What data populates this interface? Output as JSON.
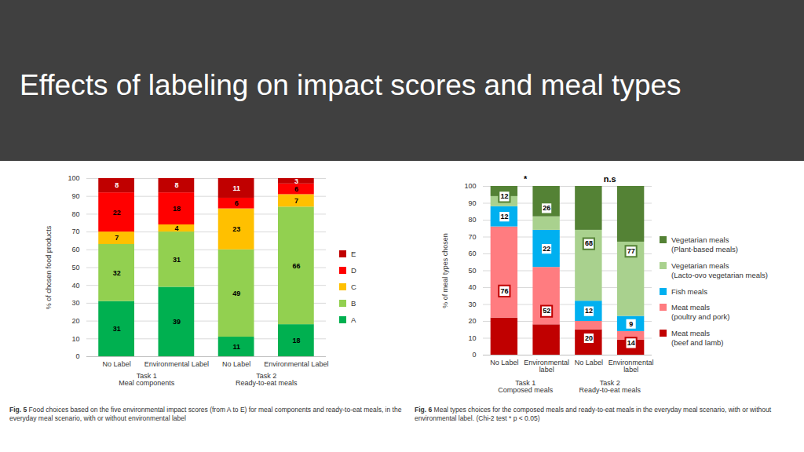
{
  "title": "Effects of labeling on impact scores and meal types",
  "chart_data": [
    {
      "type": "bar",
      "stacked": true,
      "data_labels": true,
      "grid": true,
      "legend": "right",
      "figure": "Fig. 5",
      "caption": "Food choices based on the five environmental impact scores (from A to E) for meal components and ready-to-eat meals, in the everyday meal scenario, with or without environmental label",
      "y_label": "% of chosen food products",
      "ylim": [
        0,
        100
      ],
      "yticks": [
        0,
        10,
        20,
        30,
        40,
        50,
        60,
        70,
        80,
        90,
        100
      ],
      "categories": [
        "No Label",
        "Environmental Label",
        "No Label",
        "Environmental Label"
      ],
      "groups": [
        "Task 1\nMeal components",
        "Task 2\nReady-to-eat meals"
      ],
      "series": [
        {
          "name": "A",
          "color": "#00b050",
          "values": [
            31,
            39,
            11,
            18
          ]
        },
        {
          "name": "B",
          "color": "#92d050",
          "values": [
            32,
            31,
            49,
            66
          ]
        },
        {
          "name": "C",
          "color": "#ffc000",
          "values": [
            7,
            4,
            23,
            7
          ]
        },
        {
          "name": "D",
          "color": "#ff0000",
          "values": [
            22,
            18,
            6,
            6
          ]
        },
        {
          "name": "E",
          "color": "#c00000",
          "values": [
            8,
            8,
            11,
            3
          ]
        }
      ]
    },
    {
      "type": "bar",
      "stacked": true,
      "data_labels": false,
      "grid": true,
      "legend": "right",
      "figure": "Fig. 6",
      "caption": "Meal types choices for the composed meals and ready-to-eat meals in the everyday meal scenario, with or without environmental label. (Chi-2 test * p < 0.05)",
      "y_label": "% of meal types chosen",
      "ylim": [
        0,
        100
      ],
      "yticks": [
        0,
        10,
        20,
        30,
        40,
        50,
        60,
        70,
        80,
        90,
        100
      ],
      "categories": [
        "No Label",
        "Environmental\nlabel",
        "No Label",
        "Environmental\nlabel"
      ],
      "groups": [
        "Task 1\nComposed meals",
        "Task 2\nReady-to-eat meals"
      ],
      "annotations": [
        "*",
        "n.s"
      ],
      "series": [
        {
          "name": "Meat meals\n(beef and lamb)",
          "color": "#c00000",
          "values": [
            22,
            18,
            15,
            9
          ]
        },
        {
          "name": "Meat meals\n(poultry and pork)",
          "color": "#ff7c80",
          "values": [
            54,
            34,
            5,
            5
          ]
        },
        {
          "name": "Fish meals",
          "color": "#00b0f0",
          "values": [
            12,
            22,
            12,
            9
          ]
        },
        {
          "name": "Vegetarian meals\n(Lacto-ovo vegetarian meals)",
          "color": "#a9d18e",
          "values": [
            6,
            8,
            42,
            44
          ]
        },
        {
          "name": "Vegetarian meals\n(Plant-based meals)",
          "color": "#548235",
          "values": [
            6,
            18,
            26,
            33
          ]
        }
      ],
      "totals": [
        {
          "series": [
            0,
            1
          ],
          "color": "#c00000",
          "values": [
            76,
            52,
            20,
            14
          ]
        },
        {
          "series": [
            2
          ],
          "color": "#00b0f0",
          "values": [
            12,
            22,
            12,
            9
          ]
        },
        {
          "series": [
            3,
            4
          ],
          "color": "#548235",
          "values": [
            12,
            26,
            68,
            77
          ]
        }
      ]
    }
  ]
}
